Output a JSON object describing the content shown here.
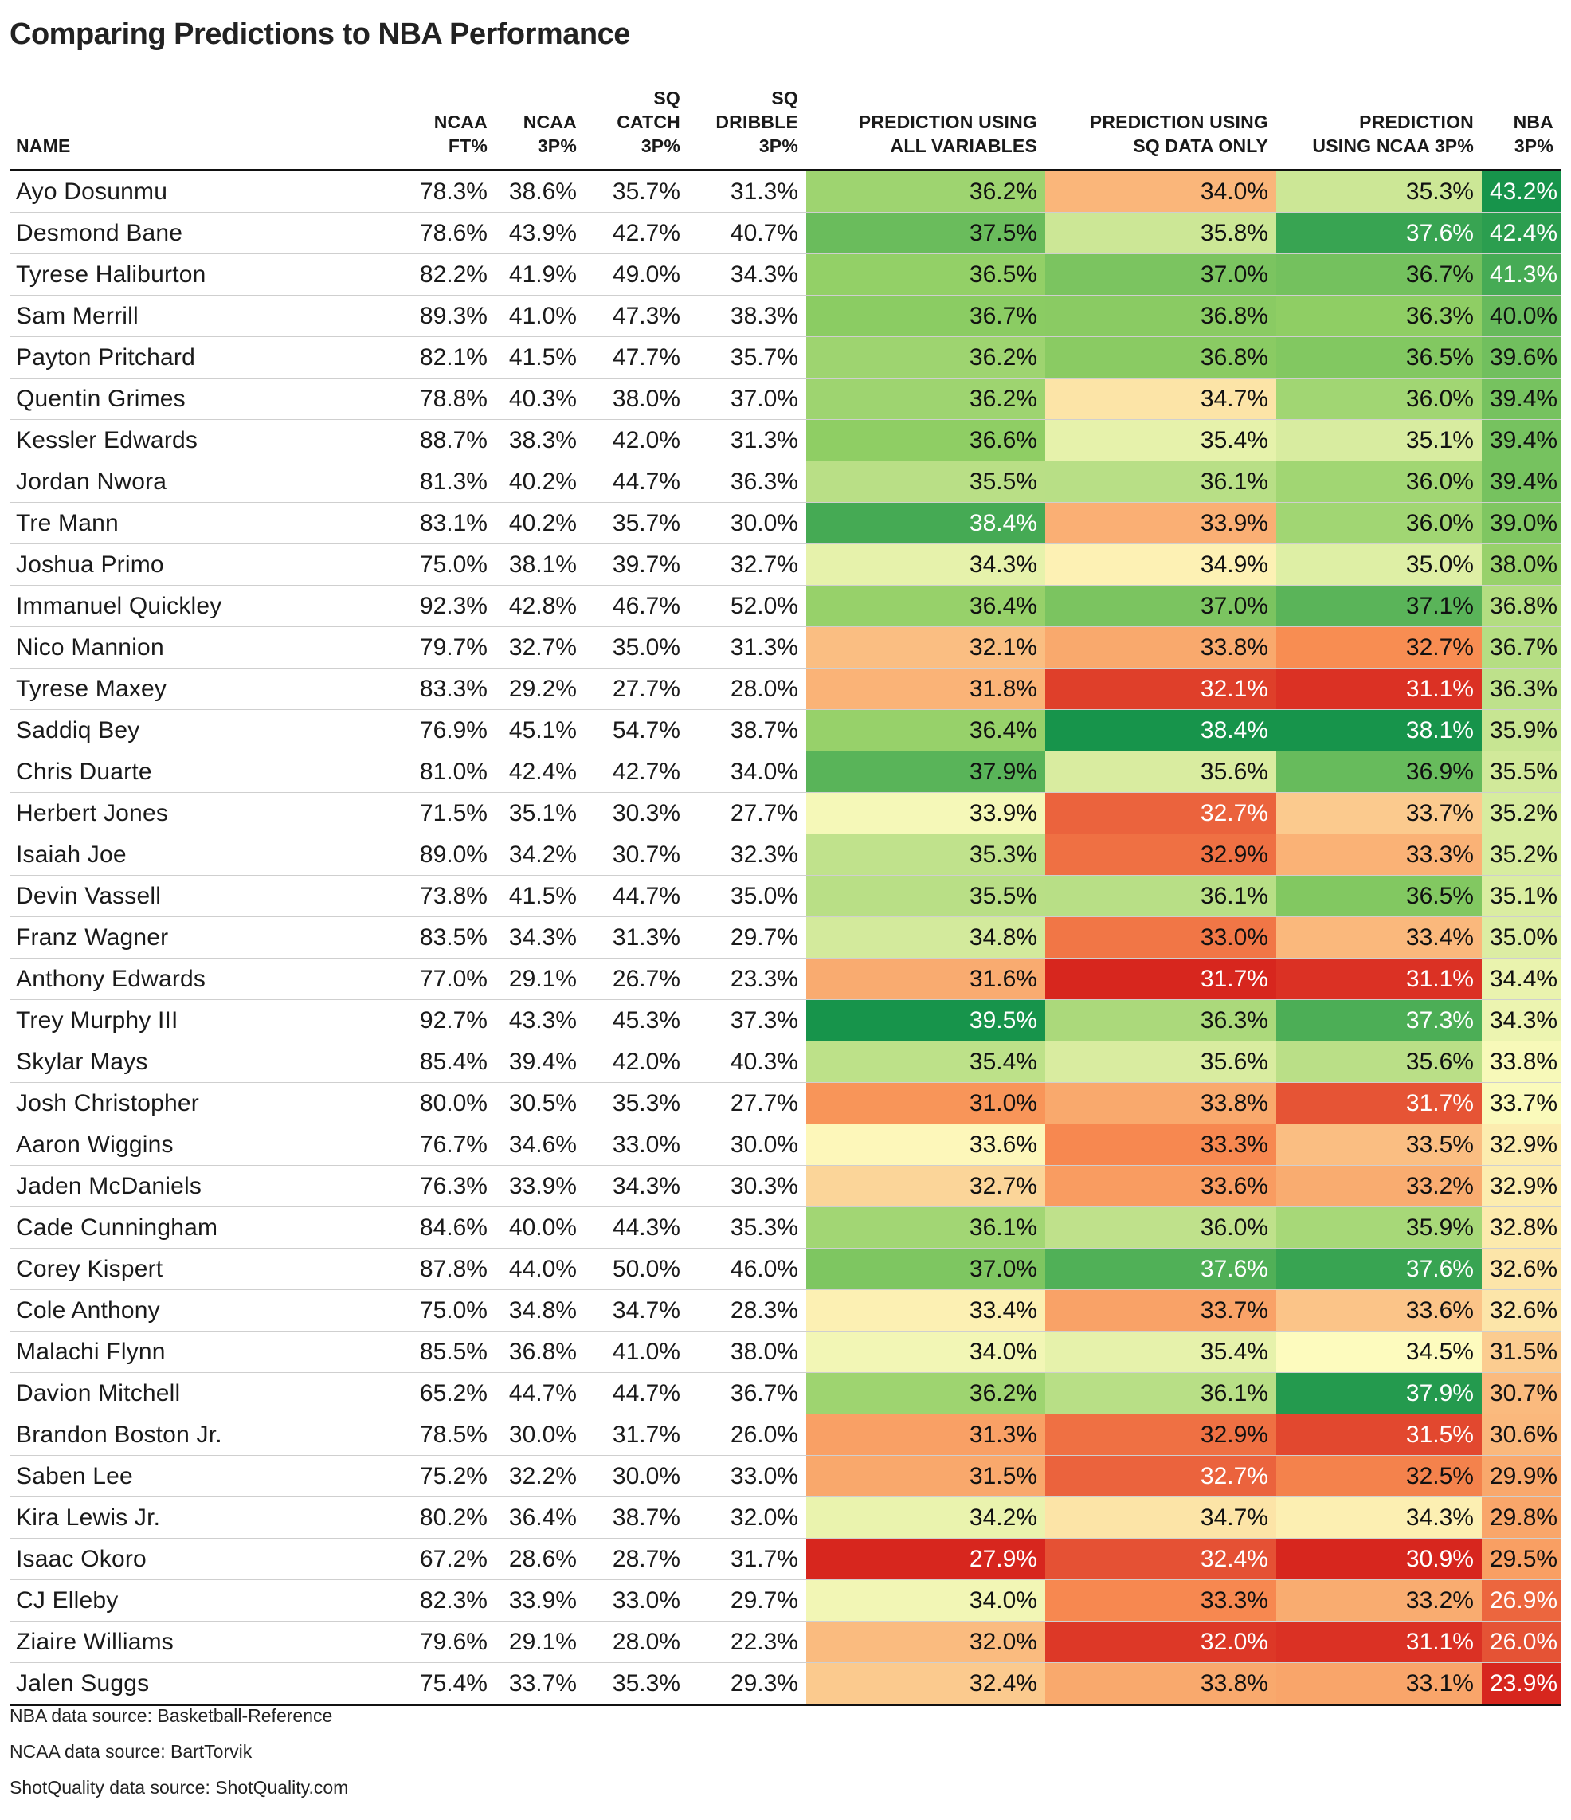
{
  "title": "Comparing Predictions to NBA Performance",
  "footer": [
    "NBA data source: Basketball-Reference",
    "NCAA data source: BartTorvik",
    "ShotQuality data source: ShotQuality.com"
  ],
  "chart_data": {
    "type": "table",
    "title": "Comparing Predictions to NBA Performance",
    "columns": [
      {
        "key": "name",
        "lines": [
          "NAME"
        ]
      },
      {
        "key": "ncaa_ft",
        "lines": [
          "NCAA",
          "FT%"
        ]
      },
      {
        "key": "ncaa_3p",
        "lines": [
          "NCAA",
          "3P%"
        ]
      },
      {
        "key": "sq_catch",
        "lines": [
          "SQ",
          "CATCH",
          "3P%"
        ]
      },
      {
        "key": "sq_dribble",
        "lines": [
          "SQ",
          "DRIBBLE",
          "3P%"
        ]
      },
      {
        "key": "pred_all",
        "lines": [
          "PREDICTION USING",
          "ALL VARIABLES"
        ]
      },
      {
        "key": "pred_sq",
        "lines": [
          "PREDICTION USING",
          "SQ DATA ONLY"
        ]
      },
      {
        "key": "pred_ncaa",
        "lines": [
          "PREDICTION",
          "USING NCAA 3P%"
        ]
      },
      {
        "key": "nba_3p",
        "lines": [
          "NBA",
          "3P%"
        ]
      }
    ],
    "heatmap_columns": [
      "pred_all",
      "pred_sq",
      "pred_ncaa",
      "nba_3p"
    ],
    "color_scale": {
      "low": "#d7261e",
      "mid": "#fdfbbe",
      "high": "#17944b",
      "mid_low": "#f88d52",
      "mid_high": "#8fce64"
    },
    "rows": [
      [
        "Ayo Dosunmu",
        "78.3%",
        "38.6%",
        "35.7%",
        "31.3%",
        "36.2%",
        "34.0%",
        "35.3%",
        "43.2%"
      ],
      [
        "Desmond Bane",
        "78.6%",
        "43.9%",
        "42.7%",
        "40.7%",
        "37.5%",
        "35.8%",
        "37.6%",
        "42.4%"
      ],
      [
        "Tyrese Haliburton",
        "82.2%",
        "41.9%",
        "49.0%",
        "34.3%",
        "36.5%",
        "37.0%",
        "36.7%",
        "41.3%"
      ],
      [
        "Sam Merrill",
        "89.3%",
        "41.0%",
        "47.3%",
        "38.3%",
        "36.7%",
        "36.8%",
        "36.3%",
        "40.0%"
      ],
      [
        "Payton Pritchard",
        "82.1%",
        "41.5%",
        "47.7%",
        "35.7%",
        "36.2%",
        "36.8%",
        "36.5%",
        "39.6%"
      ],
      [
        "Quentin Grimes",
        "78.8%",
        "40.3%",
        "38.0%",
        "37.0%",
        "36.2%",
        "34.7%",
        "36.0%",
        "39.4%"
      ],
      [
        "Kessler Edwards",
        "88.7%",
        "38.3%",
        "42.0%",
        "31.3%",
        "36.6%",
        "35.4%",
        "35.1%",
        "39.4%"
      ],
      [
        "Jordan Nwora",
        "81.3%",
        "40.2%",
        "44.7%",
        "36.3%",
        "35.5%",
        "36.1%",
        "36.0%",
        "39.4%"
      ],
      [
        "Tre Mann",
        "83.1%",
        "40.2%",
        "35.7%",
        "30.0%",
        "38.4%",
        "33.9%",
        "36.0%",
        "39.0%"
      ],
      [
        "Joshua Primo",
        "75.0%",
        "38.1%",
        "39.7%",
        "32.7%",
        "34.3%",
        "34.9%",
        "35.0%",
        "38.0%"
      ],
      [
        "Immanuel Quickley",
        "92.3%",
        "42.8%",
        "46.7%",
        "52.0%",
        "36.4%",
        "37.0%",
        "37.1%",
        "36.8%"
      ],
      [
        "Nico Mannion",
        "79.7%",
        "32.7%",
        "35.0%",
        "31.3%",
        "32.1%",
        "33.8%",
        "32.7%",
        "36.7%"
      ],
      [
        "Tyrese Maxey",
        "83.3%",
        "29.2%",
        "27.7%",
        "28.0%",
        "31.8%",
        "32.1%",
        "31.1%",
        "36.3%"
      ],
      [
        "Saddiq Bey",
        "76.9%",
        "45.1%",
        "54.7%",
        "38.7%",
        "36.4%",
        "38.4%",
        "38.1%",
        "35.9%"
      ],
      [
        "Chris Duarte",
        "81.0%",
        "42.4%",
        "42.7%",
        "34.0%",
        "37.9%",
        "35.6%",
        "36.9%",
        "35.5%"
      ],
      [
        "Herbert Jones",
        "71.5%",
        "35.1%",
        "30.3%",
        "27.7%",
        "33.9%",
        "32.7%",
        "33.7%",
        "35.2%"
      ],
      [
        "Isaiah Joe",
        "89.0%",
        "34.2%",
        "30.7%",
        "32.3%",
        "35.3%",
        "32.9%",
        "33.3%",
        "35.2%"
      ],
      [
        "Devin Vassell",
        "73.8%",
        "41.5%",
        "44.7%",
        "35.0%",
        "35.5%",
        "36.1%",
        "36.5%",
        "35.1%"
      ],
      [
        "Franz Wagner",
        "83.5%",
        "34.3%",
        "31.3%",
        "29.7%",
        "34.8%",
        "33.0%",
        "33.4%",
        "35.0%"
      ],
      [
        "Anthony Edwards",
        "77.0%",
        "29.1%",
        "26.7%",
        "23.3%",
        "31.6%",
        "31.7%",
        "31.1%",
        "34.4%"
      ],
      [
        "Trey Murphy III",
        "92.7%",
        "43.3%",
        "45.3%",
        "37.3%",
        "39.5%",
        "36.3%",
        "37.3%",
        "34.3%"
      ],
      [
        "Skylar Mays",
        "85.4%",
        "39.4%",
        "42.0%",
        "40.3%",
        "35.4%",
        "35.6%",
        "35.6%",
        "33.8%"
      ],
      [
        "Josh Christopher",
        "80.0%",
        "30.5%",
        "35.3%",
        "27.7%",
        "31.0%",
        "33.8%",
        "31.7%",
        "33.7%"
      ],
      [
        "Aaron Wiggins",
        "76.7%",
        "34.6%",
        "33.0%",
        "30.0%",
        "33.6%",
        "33.3%",
        "33.5%",
        "32.9%"
      ],
      [
        "Jaden McDaniels",
        "76.3%",
        "33.9%",
        "34.3%",
        "30.3%",
        "32.7%",
        "33.6%",
        "33.2%",
        "32.9%"
      ],
      [
        "Cade Cunningham",
        "84.6%",
        "40.0%",
        "44.3%",
        "35.3%",
        "36.1%",
        "36.0%",
        "35.9%",
        "32.8%"
      ],
      [
        "Corey Kispert",
        "87.8%",
        "44.0%",
        "50.0%",
        "46.0%",
        "37.0%",
        "37.6%",
        "37.6%",
        "32.6%"
      ],
      [
        "Cole Anthony",
        "75.0%",
        "34.8%",
        "34.7%",
        "28.3%",
        "33.4%",
        "33.7%",
        "33.6%",
        "32.6%"
      ],
      [
        "Malachi Flynn",
        "85.5%",
        "36.8%",
        "41.0%",
        "38.0%",
        "34.0%",
        "35.4%",
        "34.5%",
        "31.5%"
      ],
      [
        "Davion Mitchell",
        "65.2%",
        "44.7%",
        "44.7%",
        "36.7%",
        "36.2%",
        "36.1%",
        "37.9%",
        "30.7%"
      ],
      [
        "Brandon Boston Jr.",
        "78.5%",
        "30.0%",
        "31.7%",
        "26.0%",
        "31.3%",
        "32.9%",
        "31.5%",
        "30.6%"
      ],
      [
        "Saben Lee",
        "75.2%",
        "32.2%",
        "30.0%",
        "33.0%",
        "31.5%",
        "32.7%",
        "32.5%",
        "29.9%"
      ],
      [
        "Kira Lewis Jr.",
        "80.2%",
        "36.4%",
        "38.7%",
        "32.0%",
        "34.2%",
        "34.7%",
        "34.3%",
        "29.8%"
      ],
      [
        "Isaac Okoro",
        "67.2%",
        "28.6%",
        "28.7%",
        "31.7%",
        "27.9%",
        "32.4%",
        "30.9%",
        "29.5%"
      ],
      [
        "CJ Elleby",
        "82.3%",
        "33.9%",
        "33.0%",
        "29.7%",
        "34.0%",
        "33.3%",
        "33.2%",
        "26.9%"
      ],
      [
        "Ziaire Williams",
        "79.6%",
        "29.1%",
        "28.0%",
        "22.3%",
        "32.0%",
        "32.0%",
        "31.1%",
        "26.0%"
      ],
      [
        "Jalen Suggs",
        "75.4%",
        "33.7%",
        "35.3%",
        "29.3%",
        "32.4%",
        "33.8%",
        "33.1%",
        "23.9%"
      ]
    ]
  }
}
